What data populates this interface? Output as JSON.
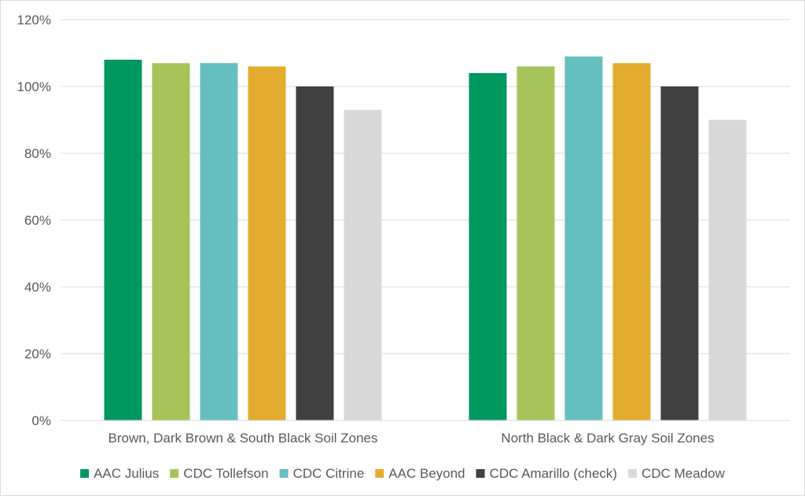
{
  "chart_data": {
    "type": "bar",
    "title": "",
    "xlabel": "",
    "ylabel": "",
    "ylim": [
      0,
      120
    ],
    "y_ticks": [
      0,
      20,
      40,
      60,
      80,
      100,
      120
    ],
    "y_tick_labels": [
      "0%",
      "20%",
      "40%",
      "60%",
      "80%",
      "100%",
      "120%"
    ],
    "grid": true,
    "legend_position": "bottom",
    "categories": [
      "Brown, Dark Brown & South Black Soil Zones",
      "North Black & Dark Gray Soil Zones"
    ],
    "series": [
      {
        "name": "AAC Julius",
        "color": "#00985f",
        "values": [
          108,
          104
        ]
      },
      {
        "name": "CDC Tollefson",
        "color": "#a6c45a",
        "values": [
          107,
          106
        ]
      },
      {
        "name": "CDC Citrine",
        "color": "#66bfbf",
        "values": [
          107,
          109
        ]
      },
      {
        "name": "AAC Beyond",
        "color": "#e3ac2f",
        "values": [
          106,
          107
        ]
      },
      {
        "name": "CDC Amarillo (check)",
        "color": "#404040",
        "values": [
          100,
          100
        ]
      },
      {
        "name": "CDC Meadow",
        "color": "#d9d9d9",
        "values": [
          93,
          90
        ]
      }
    ]
  }
}
